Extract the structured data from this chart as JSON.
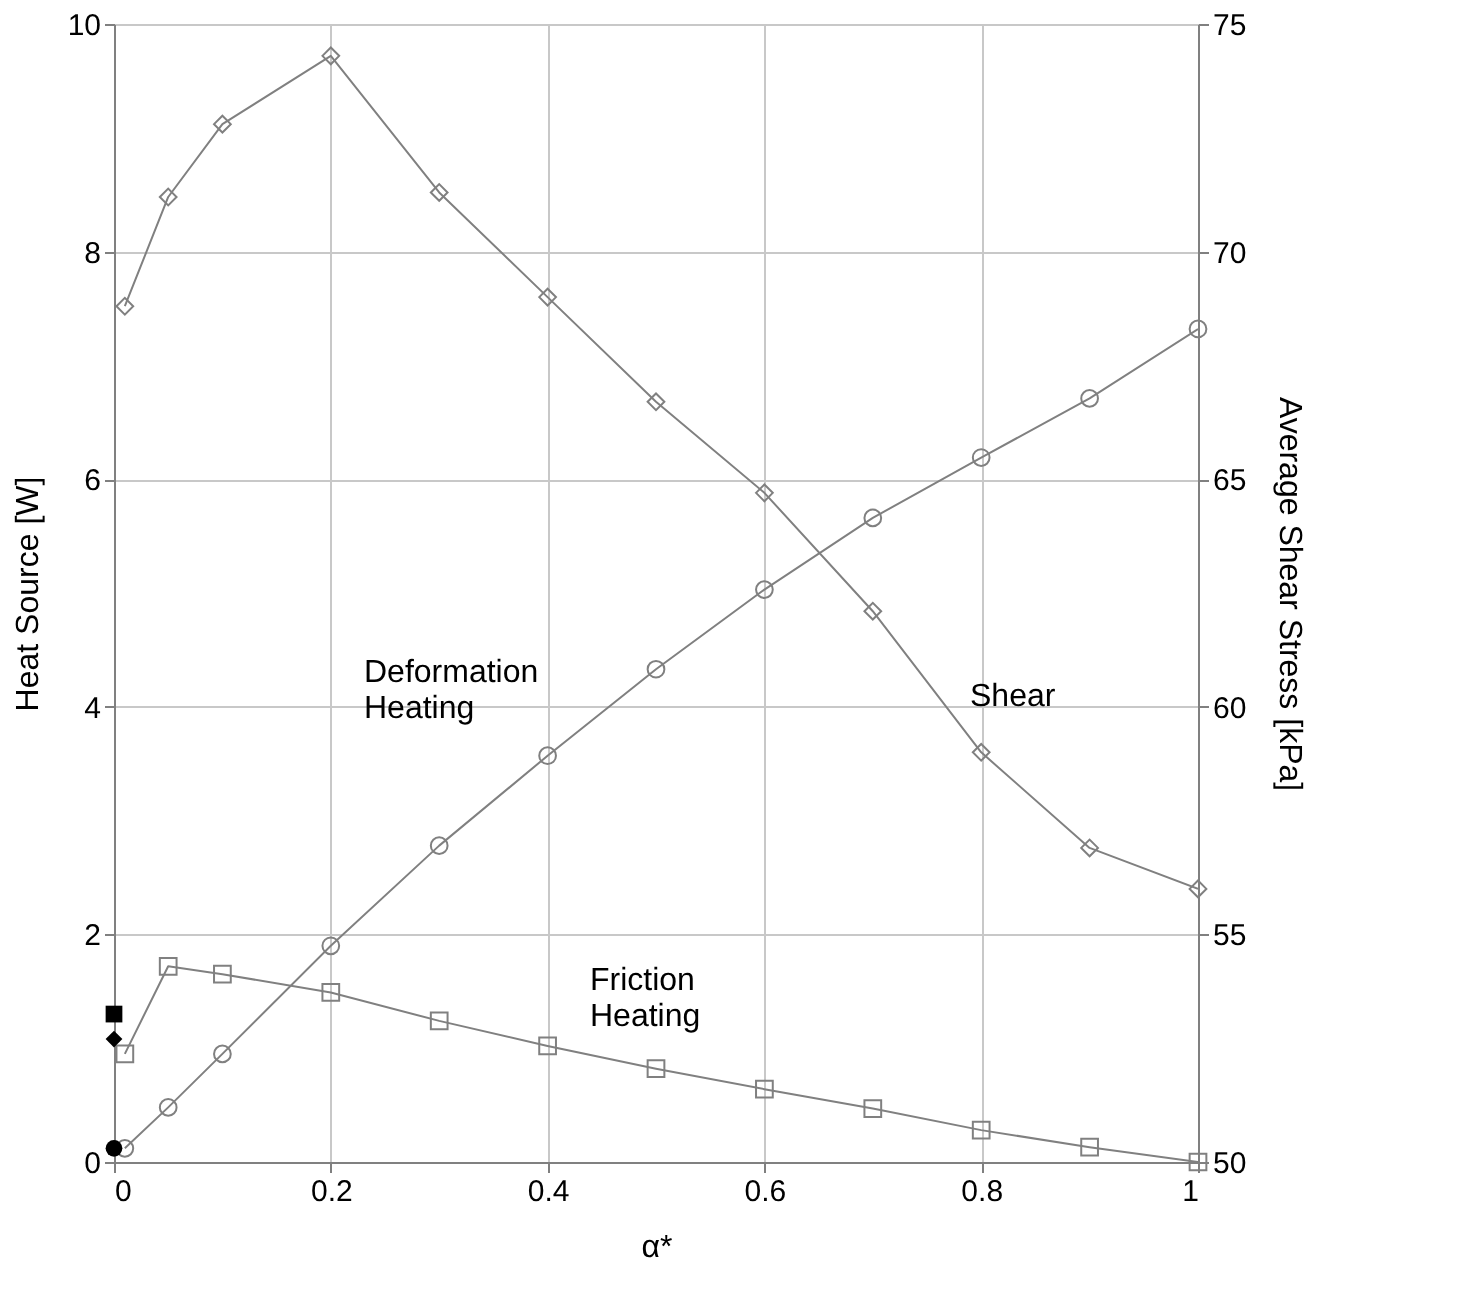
{
  "chart_data": {
    "type": "line",
    "xlabel": "α*",
    "ylabel": "Heat Source [W]",
    "y2label": "Average Shear Stress [kPa]",
    "xlim": [
      0,
      1
    ],
    "xticks": [
      0,
      0.2,
      0.4,
      0.6,
      0.8,
      1
    ],
    "ylim": [
      0,
      10
    ],
    "yticks": [
      0,
      2,
      4,
      6,
      8,
      10
    ],
    "y2lim": [
      50,
      75
    ],
    "y2ticks": [
      50,
      55,
      60,
      65,
      70,
      75
    ],
    "grid": true,
    "series": [
      {
        "name": "Deformation\nHeating",
        "marker": "circle",
        "color": "#808080",
        "x": [
          0.01,
          0.05,
          0.1,
          0.2,
          0.3,
          0.4,
          0.5,
          0.6,
          0.7,
          0.8,
          0.9,
          1.0
        ],
        "values": [
          0.12,
          0.48,
          0.95,
          1.9,
          2.78,
          3.57,
          4.33,
          5.03,
          5.66,
          6.19,
          6.71,
          7.32
        ]
      },
      {
        "name": "Friction\nHeating",
        "marker": "square",
        "color": "#808080",
        "x": [
          0.01,
          0.05,
          0.1,
          0.2,
          0.3,
          0.4,
          0.5,
          0.6,
          0.7,
          0.8,
          0.9,
          1.0
        ],
        "values": [
          0.95,
          1.72,
          1.65,
          1.49,
          1.24,
          1.02,
          0.82,
          0.64,
          0.47,
          0.28,
          0.13,
          0.0
        ]
      },
      {
        "name": "Shear",
        "marker": "diamond",
        "color": "#808080",
        "axis": "y2",
        "x": [
          0.01,
          0.05,
          0.1,
          0.2,
          0.3,
          0.4,
          0.5,
          0.6,
          0.7,
          0.8,
          0.9,
          1.0
        ],
        "values": [
          68.8,
          71.2,
          72.8,
          74.3,
          71.3,
          69.0,
          66.7,
          64.7,
          62.1,
          59.0,
          56.9,
          56.0
        ]
      },
      {
        "type": "scatter",
        "marker": "circle",
        "color": "#000000",
        "x": [
          0
        ],
        "values": [
          0.12
        ]
      },
      {
        "type": "scatter",
        "marker": "square",
        "color": "#000000",
        "x": [
          0
        ],
        "values": [
          1.3
        ]
      },
      {
        "type": "scatter",
        "marker": "diamond",
        "color": "#000000",
        "x": [
          0
        ],
        "values": [
          1.08
        ]
      }
    ]
  }
}
